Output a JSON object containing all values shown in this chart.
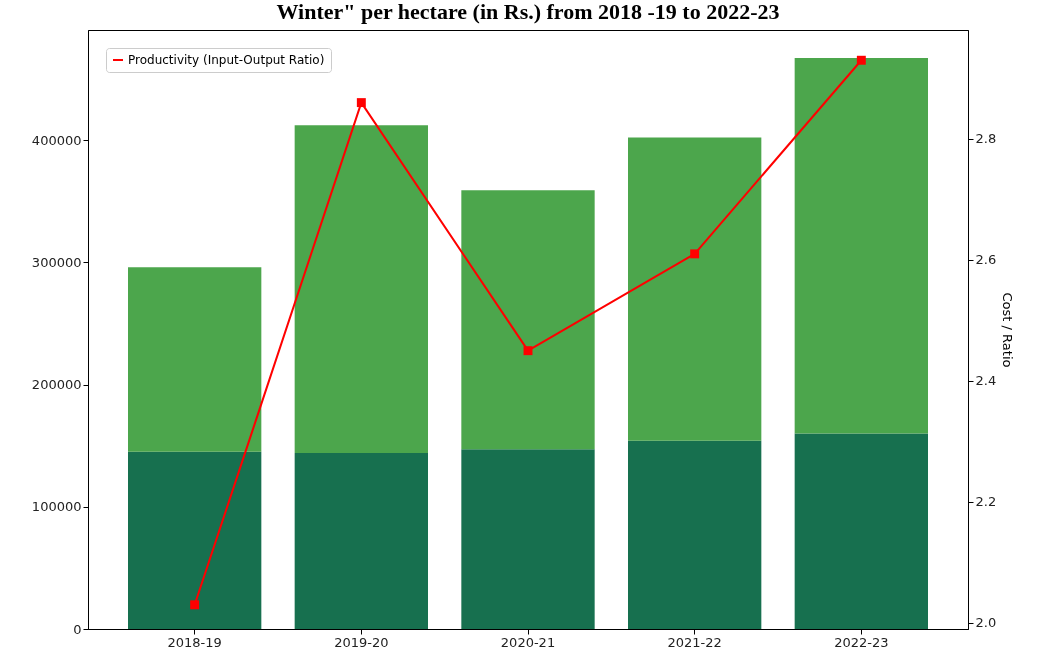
{
  "chart_data": {
    "type": "bar",
    "title": "Winter\" per hectare (in Rs.) from 2018 -19 to 2022-23",
    "categories": [
      "2018-19",
      "2019-20",
      "2020-21",
      "2021-22",
      "2022-23"
    ],
    "series": [
      {
        "color": "#17704f",
        "values": [
          145000,
          144000,
          147000,
          154000,
          160000
        ]
      },
      {
        "color": "#4ca64c",
        "values": [
          151000,
          268000,
          212000,
          248000,
          307000
        ]
      },
      {
        "name": "Productivity (Input-Output Ratio)",
        "type": "line",
        "axis": "y2",
        "color": "#ff0000",
        "values": [
          2.03,
          2.86,
          2.45,
          2.61,
          2.93
        ]
      }
    ],
    "ylim": [
      0,
      490000
    ],
    "yticks": [
      0,
      100000,
      200000,
      300000,
      400000
    ],
    "y2label": "Cost / Ratio",
    "y2lim": [
      1.99,
      2.98
    ],
    "y2ticks": [
      {
        "value": 2.0,
        "label": "2.0"
      },
      {
        "value": 2.2,
        "label": "2.2"
      },
      {
        "value": 2.4,
        "label": "2.4"
      },
      {
        "value": 2.6,
        "label": "2.6"
      },
      {
        "value": 2.8,
        "label": "2.8"
      }
    ],
    "stacked": true,
    "legend": "top left",
    "marker": "square",
    "line_style": "solid",
    "grid": false
  }
}
